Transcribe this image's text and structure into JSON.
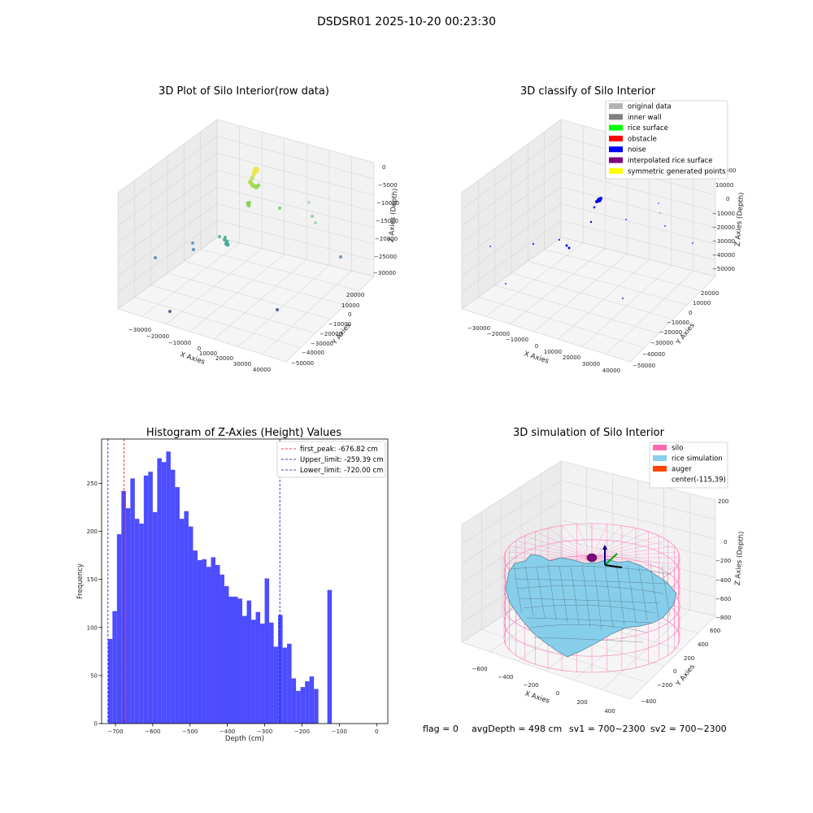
{
  "figure": {
    "suptitle": "DSDSR01 2025-10-20 00:23:30",
    "footer": {
      "flag": "flag = 0",
      "avg_depth": "avgDepth = 498 cm",
      "sv1": "sv1 = 700~2300",
      "sv2": "sv2 = 700~2300"
    }
  },
  "colors": {
    "hist_bar": "#4d4dff",
    "peak_line": "#ff0000",
    "limit_line": "#0000ff",
    "silo": "#ff69b4",
    "rice": "#87ceeb",
    "auger": "#ff4500"
  },
  "chart_data": [
    {
      "type": "scatter3d",
      "title": "3D Plot of Silo Interior(row data)",
      "xlabel": "X Axies",
      "ylabel": "Y Axies",
      "zlabel": "Z Axies (Depth)",
      "xticks": [
        "−30000",
        "−20000",
        "−10000",
        "0",
        "10000",
        "20000",
        "30000",
        "40000"
      ],
      "yticks": [
        "20000",
        "10000",
        "0",
        "−10000",
        "−20000",
        "−30000",
        "−40000",
        "−50000"
      ],
      "zticks": [
        "0",
        "−5000",
        "−10000",
        "−15000",
        "−20000",
        "−25000",
        "−30000"
      ],
      "grid": true
    },
    {
      "type": "scatter3d",
      "title": "3D classify of Silo Interior",
      "xlabel": "X Axies",
      "ylabel": "Y Axies",
      "zlabel": "Z Axies (Depth)",
      "xticks": [
        "−30000",
        "−20000",
        "−10000",
        "0",
        "10000",
        "20000",
        "30000",
        "40000"
      ],
      "yticks": [
        "20000",
        "10000",
        "0",
        "−10000",
        "−20000",
        "−30000",
        "−40000",
        "−50000"
      ],
      "zticks": [
        "10000",
        "0",
        "−10000",
        "−20000",
        "−30000",
        "−40000",
        "−50000"
      ],
      "ztick_partial_top": "000",
      "legend": [
        {
          "label": "original data",
          "color": "#b3b3b3"
        },
        {
          "label": "inner wall",
          "color": "#808080"
        },
        {
          "label": "rice surface",
          "color": "#00ff00"
        },
        {
          "label": "obstacle",
          "color": "#ff0000"
        },
        {
          "label": "noise",
          "color": "#0000ff"
        },
        {
          "label": "interpolated rice surface",
          "color": "#800080"
        },
        {
          "label": "symmetric generated points",
          "color": "#ffff00"
        }
      ],
      "legend_position": "top-right",
      "grid": true
    },
    {
      "type": "bar",
      "title": "Histogram of Z-Axies (Height) Values",
      "xlabel": "Depth (cm)",
      "ylabel": "Frequency",
      "xlim": [
        -737,
        30
      ],
      "ylim": [
        0,
        296
      ],
      "xticks": [
        -700,
        -600,
        -500,
        -400,
        -300,
        -200,
        -100,
        0
      ],
      "yticks": [
        0,
        50,
        100,
        150,
        200,
        250
      ],
      "bin_start": -720,
      "bin_width": 12,
      "values": [
        88,
        117,
        197,
        242,
        224,
        255,
        213,
        208,
        258,
        262,
        220,
        276,
        272,
        283,
        264,
        246,
        213,
        221,
        205,
        180,
        170,
        171,
        163,
        173,
        165,
        155,
        143,
        132,
        132,
        130,
        112,
        128,
        108,
        116,
        104,
        151,
        105,
        80,
        113,
        79,
        83,
        47,
        34,
        38,
        44,
        49,
        36,
        0,
        0,
        139
      ],
      "vlines": [
        {
          "label": "first_peak: -676.82 cm",
          "x": -676.82,
          "color": "#ff0000"
        },
        {
          "label": "Upper_limit: -259.39 cm",
          "x": -259.39,
          "color": "#0000ff"
        },
        {
          "label": "Lower_limit: -720.00 cm",
          "x": -720.0,
          "color": "#0000ff"
        }
      ],
      "legend_position": "top-right"
    },
    {
      "type": "surface3d",
      "title": "3D simulation of Silo Interior",
      "xlabel": "X Axies",
      "ylabel": "Y Axies",
      "zlabel": "Z Axies (Depth)",
      "xticks": [
        "−600",
        "−400",
        "−200",
        "0",
        "200",
        "400"
      ],
      "yticks": [
        "600",
        "400",
        "200",
        "0",
        "−200",
        "−400"
      ],
      "zticks": [
        "200",
        "0",
        "−200",
        "−400",
        "−600",
        "−800"
      ],
      "legend": [
        {
          "label": "silo",
          "color": "#ff69b4"
        },
        {
          "label": "rice simulation",
          "color": "#87ceeb"
        },
        {
          "label": "auger",
          "color": "#ff4500"
        },
        {
          "label": "center(-115,39)",
          "color": ""
        }
      ],
      "legend_position": "top-right",
      "grid": true
    }
  ]
}
